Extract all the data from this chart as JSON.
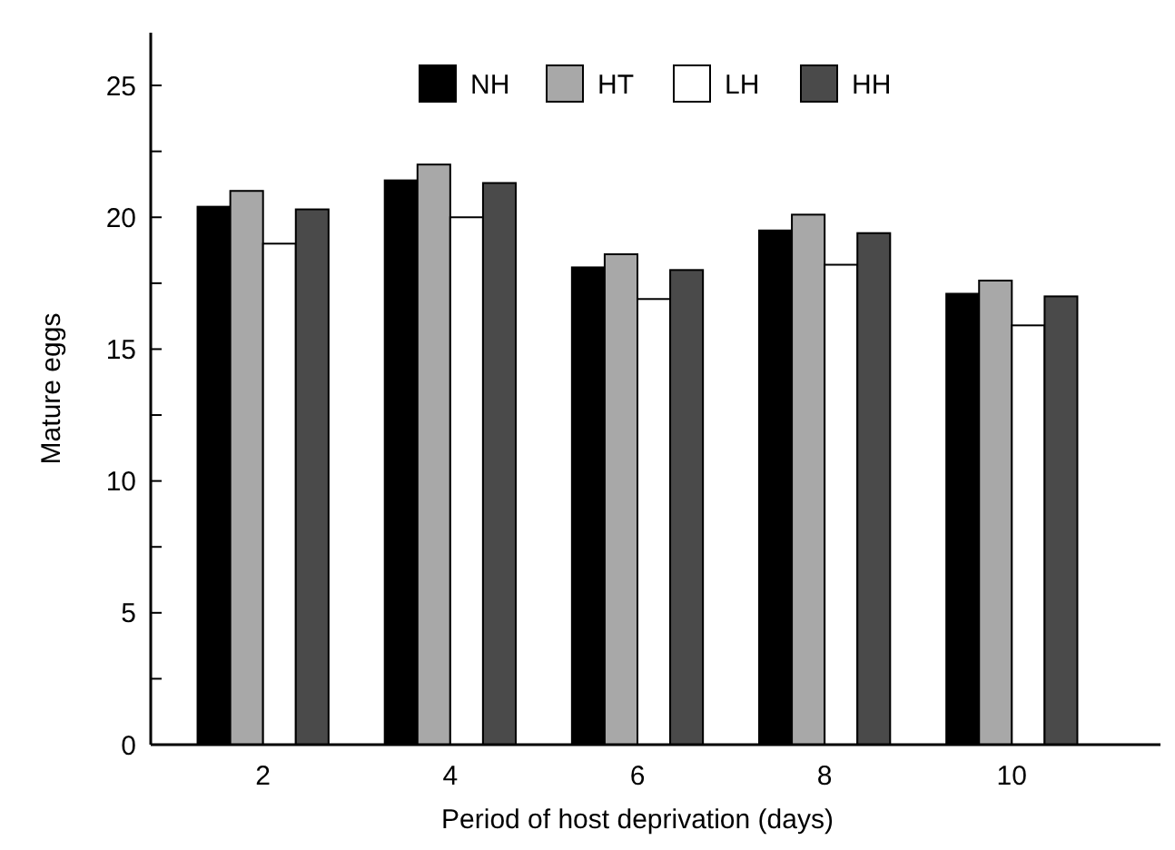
{
  "chart_data": {
    "type": "bar",
    "xlabel": "Period of host deprivation (days)",
    "ylabel": "Mature eggs",
    "categories": [
      "2",
      "4",
      "6",
      "8",
      "10"
    ],
    "series": [
      {
        "name": "NH",
        "color": "#000000",
        "values": [
          20.4,
          21.4,
          18.1,
          19.5,
          17.1
        ]
      },
      {
        "name": "HT",
        "color": "#a8a8a8",
        "values": [
          21.0,
          22.0,
          18.6,
          20.1,
          17.6
        ]
      },
      {
        "name": "LH",
        "color": "#ffffff",
        "values": [
          19.0,
          20.0,
          16.9,
          18.2,
          15.9
        ]
      },
      {
        "name": "HH",
        "color": "#4a4a4a",
        "values": [
          20.3,
          21.3,
          18.0,
          19.4,
          17.0
        ]
      }
    ],
    "ylim": [
      0,
      27
    ],
    "yticks": [
      0,
      {
        "value": 2.5,
        "label": null
      },
      5,
      {
        "value": 7.5,
        "label": null
      },
      10,
      {
        "value": 12.5,
        "label": null
      },
      15,
      {
        "value": 17.5,
        "label": null
      },
      20,
      {
        "value": 22.5,
        "label": null
      },
      25
    ],
    "grid": false,
    "legend": "top"
  }
}
